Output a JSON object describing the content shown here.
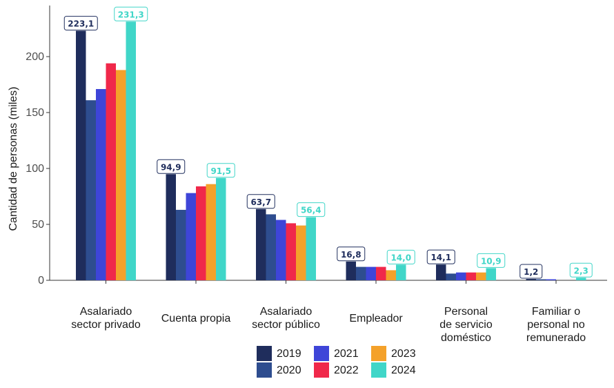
{
  "chart_data": {
    "type": "bar",
    "title": "",
    "xlabel": "",
    "ylabel": "Cantidad de personas (miles)",
    "ylim": [
      0,
      240
    ],
    "yticks": [
      0,
      50,
      100,
      150,
      200
    ],
    "grid": false,
    "legend_position": "bottom",
    "categories": [
      [
        "Asalariado",
        "sector privado"
      ],
      [
        "Cuenta propia"
      ],
      [
        "Asalariado",
        "sector público"
      ],
      [
        "Empleador"
      ],
      [
        "Personal",
        "de servicio",
        "doméstico"
      ],
      [
        "Familiar o",
        "personal no",
        "remunerado"
      ]
    ],
    "series": [
      {
        "name": "2019",
        "color": "#1f2d5c",
        "values": [
          223.1,
          94.9,
          63.7,
          16.8,
          14.1,
          1.2
        ]
      },
      {
        "name": "2020",
        "color": "#2e4d8f",
        "values": [
          161,
          63,
          59,
          12,
          6,
          0.5
        ]
      },
      {
        "name": "2021",
        "color": "#3e45d8",
        "values": [
          171,
          78,
          54,
          12,
          7,
          0.5
        ]
      },
      {
        "name": "2022",
        "color": "#f0284a",
        "values": [
          194,
          84,
          51,
          12,
          7,
          0
        ]
      },
      {
        "name": "2023",
        "color": "#f4a12a",
        "values": [
          188,
          86,
          49,
          9,
          7,
          0
        ]
      },
      {
        "name": "2024",
        "color": "#40d6c8",
        "values": [
          231.3,
          91.5,
          56.4,
          14.0,
          10.9,
          2.3
        ]
      }
    ],
    "data_labels": [
      {
        "category": 0,
        "series": 0,
        "text": "223,1"
      },
      {
        "category": 0,
        "series": 5,
        "text": "231,3"
      },
      {
        "category": 1,
        "series": 0,
        "text": "94,9"
      },
      {
        "category": 1,
        "series": 5,
        "text": "91,5"
      },
      {
        "category": 2,
        "series": 0,
        "text": "63,7"
      },
      {
        "category": 2,
        "series": 5,
        "text": "56,4"
      },
      {
        "category": 3,
        "series": 0,
        "text": "16,8"
      },
      {
        "category": 3,
        "series": 5,
        "text": "14,0"
      },
      {
        "category": 4,
        "series": 0,
        "text": "14,1"
      },
      {
        "category": 4,
        "series": 5,
        "text": "10,9"
      },
      {
        "category": 5,
        "series": 0,
        "text": "1,2"
      },
      {
        "category": 5,
        "series": 5,
        "text": "2,3"
      }
    ]
  }
}
